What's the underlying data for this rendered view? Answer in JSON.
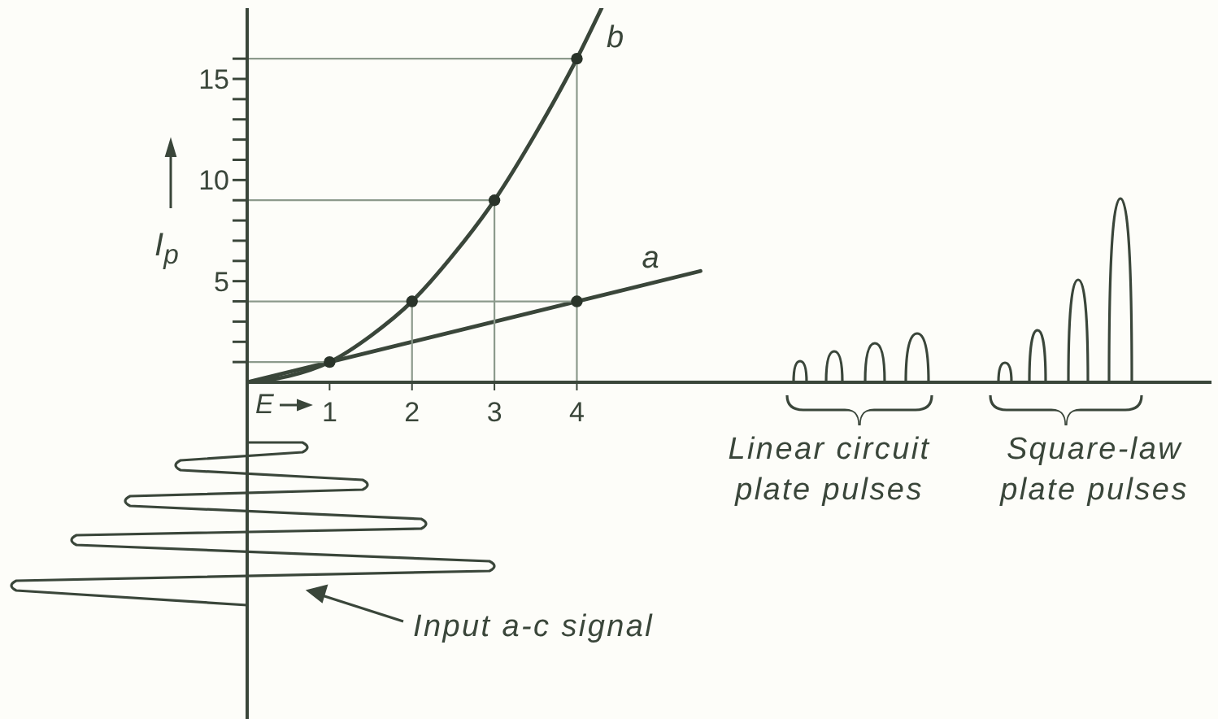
{
  "chart_data": {
    "type": "line",
    "xlabel": "E",
    "ylabel": "I$_{p}$",
    "xlim": [
      0,
      11.7
    ],
    "xticks": [
      1,
      2,
      3,
      4
    ],
    "ylim": [
      0,
      18.5
    ],
    "yticks": [
      {
        "value": 1,
        "label": null
      },
      {
        "value": 2,
        "label": null
      },
      {
        "value": 3,
        "label": null
      },
      {
        "value": 4,
        "label": null
      },
      5,
      {
        "value": 6,
        "label": null
      },
      {
        "value": 7,
        "label": null
      },
      {
        "value": 8,
        "label": null
      },
      {
        "value": 9,
        "label": null
      },
      10,
      {
        "value": 11,
        "label": null
      },
      {
        "value": 12,
        "label": null
      },
      {
        "value": 13,
        "label": null
      },
      {
        "value": 14,
        "label": null
      },
      15,
      {
        "value": 16,
        "label": null
      }
    ],
    "grid": false,
    "legend": false,
    "line_style": "solid",
    "series": [
      {
        "name": "a",
        "color": "#3a463a",
        "x": [
          0,
          5.5
        ],
        "values": [
          0,
          5.5
        ]
      },
      {
        "name": "b",
        "color": "#3a463a",
        "x": [
          0,
          0.5,
          1,
          1.5,
          2,
          2.5,
          3,
          3.5,
          4,
          4.3
        ],
        "values": [
          0,
          0.3,
          1,
          2.3,
          4,
          6.3,
          9,
          12.3,
          16,
          18.5
        ]
      },
      {
        "type": "scatter",
        "marker": "circle",
        "color": "#2a342a",
        "x": [
          1,
          2,
          3,
          4,
          4
        ],
        "values": [
          1,
          4,
          9,
          16,
          4
        ]
      },
      {
        "color": "#8c9a8c",
        "x": [
          0,
          4,
          4
        ],
        "values": [
          16,
          16,
          0
        ]
      },
      {
        "color": "#8c9a8c",
        "x": [
          0,
          3,
          3
        ],
        "values": [
          9,
          9,
          0
        ]
      },
      {
        "color": "#8c9a8c",
        "x": [
          0,
          4
        ],
        "values": [
          4,
          4
        ]
      },
      {
        "color": "#8c9a8c",
        "x": [
          2,
          2
        ],
        "values": [
          4,
          0
        ]
      },
      {
        "color": "#8c9a8c",
        "x": [
          0,
          1
        ],
        "values": [
          1,
          1
        ]
      }
    ],
    "annotations": [
      "Linear circuit plate pulses",
      "Square-law plate pulses",
      "Input a-c signal"
    ]
  }
}
